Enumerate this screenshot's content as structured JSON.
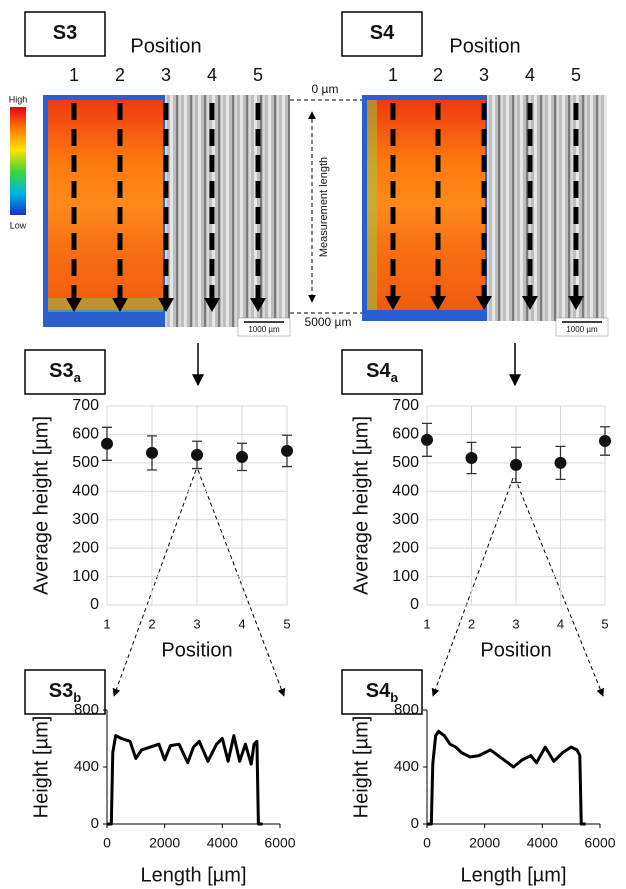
{
  "panels": [
    {
      "label": "S3",
      "position_title": "Position",
      "positions": [
        "1",
        "2",
        "3",
        "4",
        "5"
      ],
      "scale_bar": "1000 µm"
    },
    {
      "label": "S4",
      "position_title": "Position",
      "positions": [
        "1",
        "2",
        "3",
        "4",
        "5"
      ],
      "scale_bar": "1000 µm"
    }
  ],
  "colorbar": {
    "high": "High",
    "low": "Low"
  },
  "measurement": {
    "start": "0 µm",
    "end": "5000 µm",
    "label": "Measurement length"
  },
  "chart_data": [
    {
      "type": "scatter",
      "panel_label": "S3",
      "panel_subscript": "a",
      "x_label": "Position",
      "y_label": "Average height [µm]",
      "x": [
        1,
        2,
        3,
        4,
        5
      ],
      "values": [
        567,
        535,
        528,
        521,
        542
      ],
      "errors": [
        58,
        60,
        48,
        48,
        55
      ],
      "color": "#111111",
      "xlim": [
        1,
        5
      ],
      "xticks": [
        1,
        2,
        3,
        4,
        5
      ],
      "ylim": [
        0,
        700
      ],
      "yticks": [
        0,
        100,
        200,
        300,
        400,
        500,
        600,
        700
      ],
      "grid": true
    },
    {
      "type": "scatter",
      "panel_label": "S4",
      "panel_subscript": "a",
      "x_label": "Position",
      "y_label": "Average height [µm]",
      "x": [
        1,
        2,
        3,
        4,
        5
      ],
      "values": [
        581,
        517,
        493,
        500,
        577
      ],
      "errors": [
        58,
        55,
        62,
        58,
        50
      ],
      "color": "#111111",
      "xlim": [
        1,
        5
      ],
      "xticks": [
        1,
        2,
        3,
        4,
        5
      ],
      "ylim": [
        0,
        700
      ],
      "yticks": [
        0,
        100,
        200,
        300,
        400,
        500,
        600,
        700
      ],
      "grid": true
    },
    {
      "type": "line",
      "panel_label": "S3",
      "panel_subscript": "b",
      "x_label": "Length [µm]",
      "y_label": "Height [µm]",
      "x": [
        0,
        150,
        200,
        300,
        500,
        800,
        1000,
        1200,
        1500,
        1800,
        2000,
        2200,
        2500,
        2800,
        3000,
        3200,
        3500,
        3800,
        4000,
        4200,
        4400,
        4600,
        4800,
        5000,
        5100,
        5200,
        5250,
        5300,
        5400
      ],
      "values": [
        0,
        0,
        500,
        620,
        600,
        580,
        460,
        520,
        540,
        560,
        450,
        550,
        560,
        430,
        540,
        580,
        440,
        560,
        600,
        440,
        620,
        440,
        560,
        420,
        560,
        580,
        0,
        0,
        0
      ],
      "color": "#000000",
      "xlim": [
        0,
        6000
      ],
      "xticks": [
        0,
        2000,
        4000,
        6000
      ],
      "ylim": [
        0,
        800
      ],
      "yticks": [
        0,
        400,
        800
      ],
      "grid": false
    },
    {
      "type": "line",
      "panel_label": "S4",
      "panel_subscript": "b",
      "x_label": "Length [µm]",
      "y_label": "Height [µm]",
      "x": [
        0,
        150,
        200,
        300,
        400,
        600,
        800,
        1000,
        1200,
        1500,
        1800,
        2200,
        2600,
        3000,
        3300,
        3600,
        3800,
        4100,
        4400,
        4700,
        5000,
        5200,
        5300,
        5350,
        5500
      ],
      "values": [
        0,
        0,
        420,
        620,
        650,
        620,
        560,
        540,
        500,
        470,
        480,
        520,
        460,
        400,
        450,
        480,
        430,
        540,
        440,
        500,
        540,
        520,
        480,
        0,
        0
      ],
      "color": "#000000",
      "xlim": [
        0,
        6000
      ],
      "xticks": [
        0,
        2000,
        4000,
        6000
      ],
      "ylim": [
        0,
        800
      ],
      "yticks": [
        0,
        400,
        800
      ],
      "grid": false
    }
  ]
}
